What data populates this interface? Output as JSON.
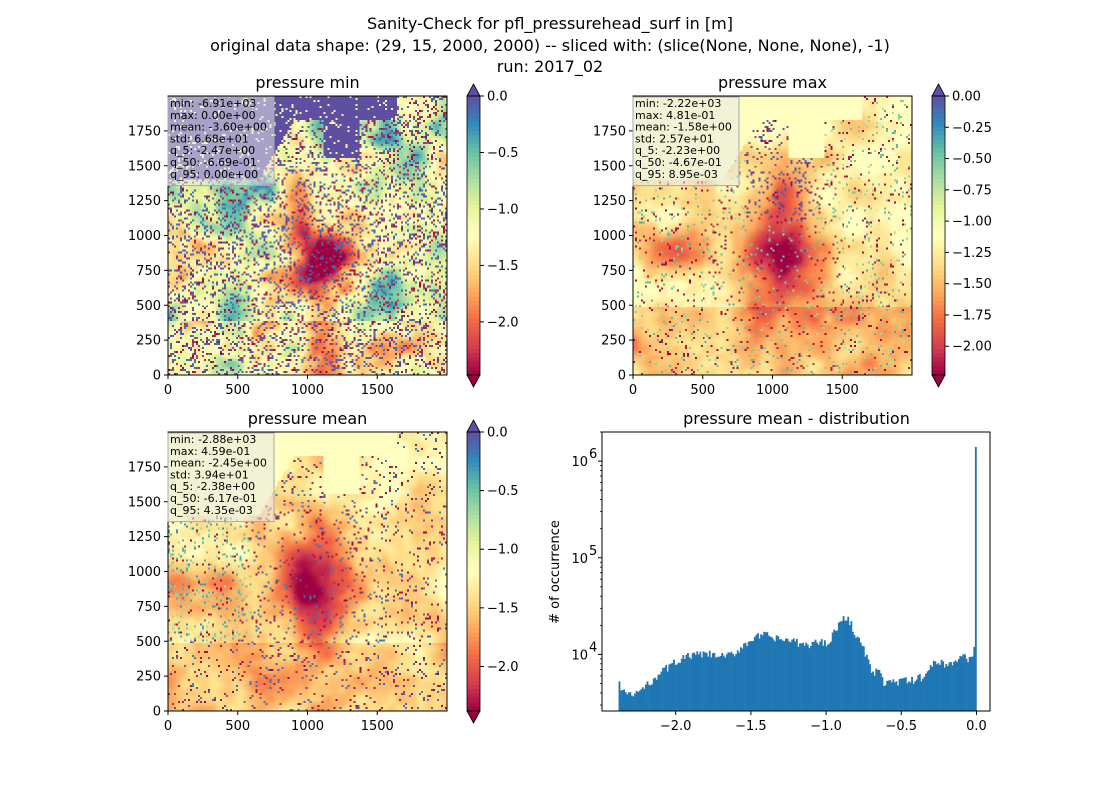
{
  "suptitle": [
    "Sanity-Check for pfl_pressurehead_surf in [m]",
    "original data shape: (29, 15, 2000, 2000) -- sliced with: (slice(None, None, None), -1)",
    "run: 2017_02"
  ],
  "colormap": "Spectral",
  "colors": {
    "under": "#9e0142",
    "over": "#5e4fa2",
    "histogram": "#1f77b4"
  },
  "chart_data": [
    {
      "type": "heatmap",
      "title": "pressure min",
      "xlim": [
        0,
        2000
      ],
      "ylim": [
        0,
        2000
      ],
      "xticks": [
        "0",
        "500",
        "1000",
        "1500"
      ],
      "yticks": [
        "0",
        "250",
        "500",
        "750",
        "1000",
        "1250",
        "1500",
        "1750"
      ],
      "stats": [
        "min: -6.91e+03",
        "max: 0.00e+00",
        "mean: -3.60e+00",
        "std: 6.68e+01",
        "q_5: -2.47e+00",
        "q_50: -6.69e-01",
        "q_95: 0.00e+00"
      ],
      "colorbar": {
        "vmin": -2.47,
        "vmax": 0.0,
        "extend": "both",
        "ticks": [
          0.0,
          -0.5,
          -1.0,
          -1.5,
          -2.0
        ],
        "ticklabels": [
          "0.0",
          "−0.5",
          "−1.0",
          "−1.5",
          "−2.0"
        ]
      }
    },
    {
      "type": "heatmap",
      "title": "pressure max",
      "xlim": [
        0,
        2000
      ],
      "ylim": [
        0,
        2000
      ],
      "xticks": [
        "0",
        "500",
        "1000",
        "1500"
      ],
      "yticks": [
        "0",
        "250",
        "500",
        "750",
        "1000",
        "1250",
        "1500",
        "1750"
      ],
      "stats": [
        "min: -2.22e+03",
        "max: 4.81e-01",
        "mean: -1.58e+00",
        "std: 2.57e+01",
        "q_5: -2.23e+00",
        "q_50: -4.67e-01",
        "q_95: 8.95e-03"
      ],
      "colorbar": {
        "vmin": -2.23,
        "vmax": 0.0,
        "extend": "both",
        "ticks": [
          0.0,
          -0.25,
          -0.5,
          -0.75,
          -1.0,
          -1.25,
          -1.5,
          -1.75,
          -2.0
        ],
        "ticklabels": [
          "0.00",
          "−0.25",
          "−0.50",
          "−0.75",
          "−1.00",
          "−1.25",
          "−1.50",
          "−1.75",
          "−2.00"
        ]
      }
    },
    {
      "type": "heatmap",
      "title": "pressure mean",
      "xlim": [
        0,
        2000
      ],
      "ylim": [
        0,
        2000
      ],
      "xticks": [
        "0",
        "500",
        "1000",
        "1500"
      ],
      "yticks": [
        "0",
        "250",
        "500",
        "750",
        "1000",
        "1250",
        "1500",
        "1750"
      ],
      "stats": [
        "min: -2.88e+03",
        "max: 4.59e-01",
        "mean: -2.45e+00",
        "std: 3.94e+01",
        "q_5: -2.38e+00",
        "q_50: -6.17e-01",
        "q_95: 4.35e-03"
      ],
      "colorbar": {
        "vmin": -2.38,
        "vmax": 0.0,
        "extend": "both",
        "ticks": [
          0.0,
          -0.5,
          -1.0,
          -1.5,
          -2.0
        ],
        "ticklabels": [
          "0.0",
          "−0.5",
          "−1.0",
          "−1.5",
          "−2.0"
        ]
      }
    },
    {
      "type": "bar",
      "title": "pressure mean - distribution",
      "ylabel": "# of occurrence",
      "yscale": "log",
      "xlim": [
        -2.49,
        0.09
      ],
      "ylim": [
        2600,
        2000000
      ],
      "xticks": [
        -2.0,
        -1.5,
        -1.0,
        -0.5,
        0.0
      ],
      "xticklabels": [
        "−2.0",
        "−1.5",
        "−1.0",
        "−0.5",
        "0.0"
      ],
      "yticks": [
        10000,
        100000,
        1000000
      ],
      "histogram": {
        "range": [
          -2.38,
          0.0
        ],
        "anchors_x": [
          -2.38,
          -2.37,
          -2.34,
          -2.3,
          -2.2,
          -2.12,
          -2.05,
          -1.98,
          -1.9,
          -1.8,
          -1.7,
          -1.62,
          -1.55,
          -1.48,
          -1.4,
          -1.34,
          -1.28,
          -1.22,
          -1.18,
          -1.13,
          -1.08,
          -1.03,
          -1.0,
          -0.97,
          -0.92,
          -0.87,
          -0.84,
          -0.81,
          -0.77,
          -0.73,
          -0.7,
          -0.68,
          -0.66,
          -0.64,
          -0.62,
          -0.55,
          -0.5,
          -0.45,
          -0.4,
          -0.35,
          -0.3,
          -0.26,
          -0.22,
          -0.18,
          -0.14,
          -0.1,
          -0.06,
          -0.03,
          -0.01,
          0.0
        ],
        "anchors_y": [
          5000,
          4800,
          4100,
          3700,
          4600,
          6200,
          7400,
          8800,
          9700,
          10100,
          9500,
          9900,
          12500,
          15000,
          15800,
          14500,
          14200,
          13800,
          12800,
          12500,
          13200,
          13500,
          13000,
          14800,
          20000,
          24000,
          22000,
          17000,
          13000,
          9500,
          7000,
          5500,
          7800,
          6000,
          5200,
          5200,
          5300,
          5300,
          5500,
          6000,
          7500,
          8500,
          8200,
          7800,
          8500,
          9500,
          9200,
          9000,
          14000,
          14000
        ],
        "peak_value": 1400000
      }
    }
  ]
}
